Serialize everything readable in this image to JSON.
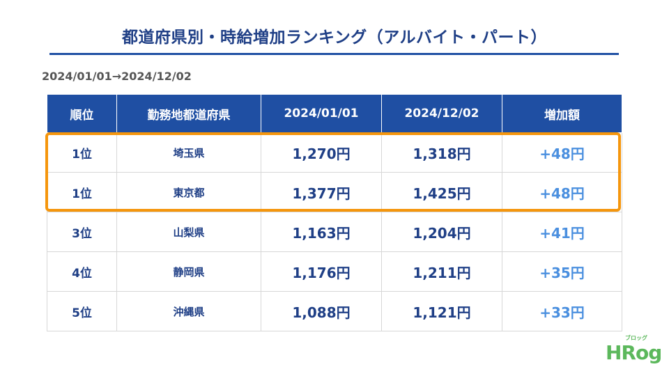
{
  "title": "都道府県別・時給増加ランキング（アルバイト・パート）",
  "period": "2024/01/01→2024/12/02",
  "table": {
    "headers": [
      "順位",
      "勤務地都道府県",
      "2024/01/01",
      "2024/12/02",
      "増加額"
    ],
    "rows": [
      {
        "rank": "1位",
        "pref": "埼玉県",
        "v1": "1,270円",
        "v2": "1,318円",
        "inc": "+48円"
      },
      {
        "rank": "1位",
        "pref": "東京都",
        "v1": "1,377円",
        "v2": "1,425円",
        "inc": "+48円"
      },
      {
        "rank": "3位",
        "pref": "山梨県",
        "v1": "1,163円",
        "v2": "1,204円",
        "inc": "+41円"
      },
      {
        "rank": "4位",
        "pref": "静岡県",
        "v1": "1,176円",
        "v2": "1,211円",
        "inc": "+35円"
      },
      {
        "rank": "5位",
        "pref": "沖縄県",
        "v1": "1,088円",
        "v2": "1,121円",
        "inc": "+33円"
      }
    ]
  },
  "logo": {
    "text": "HRog",
    "sub": "ブロッグ"
  },
  "colors": {
    "header_bg": "#1f4fa3",
    "text": "#1f3f86",
    "increase": "#4a8fdf",
    "highlight": "#f5960d",
    "logo": "#5cb85c"
  }
}
